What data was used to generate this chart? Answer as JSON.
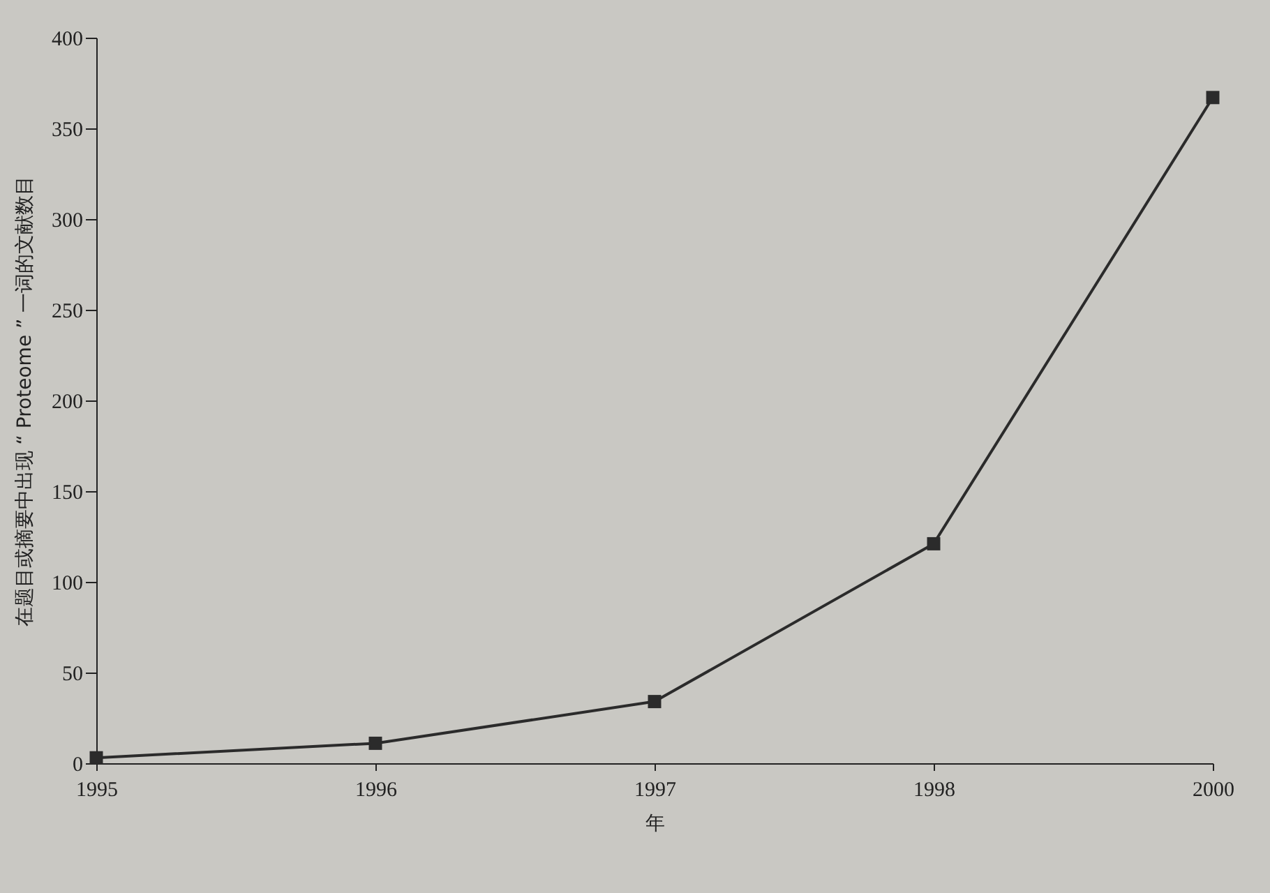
{
  "chart_data": {
    "type": "line",
    "xlabel": "年",
    "ylabel": "在题目或摘要中出现 “ Proteome ” 一词的文献数目",
    "categories": [
      "1995",
      "1996",
      "1997",
      "1998",
      "2000"
    ],
    "series": [
      {
        "color": "#2b2b2b",
        "values": [
          3,
          11,
          34,
          121,
          367
        ]
      }
    ],
    "ylim": [
      0,
      400
    ],
    "yticks": [
      0,
      50,
      100,
      150,
      200,
      250,
      300,
      350,
      400
    ],
    "grid": false,
    "legend": false,
    "marker": "square",
    "line_style": "solid"
  }
}
